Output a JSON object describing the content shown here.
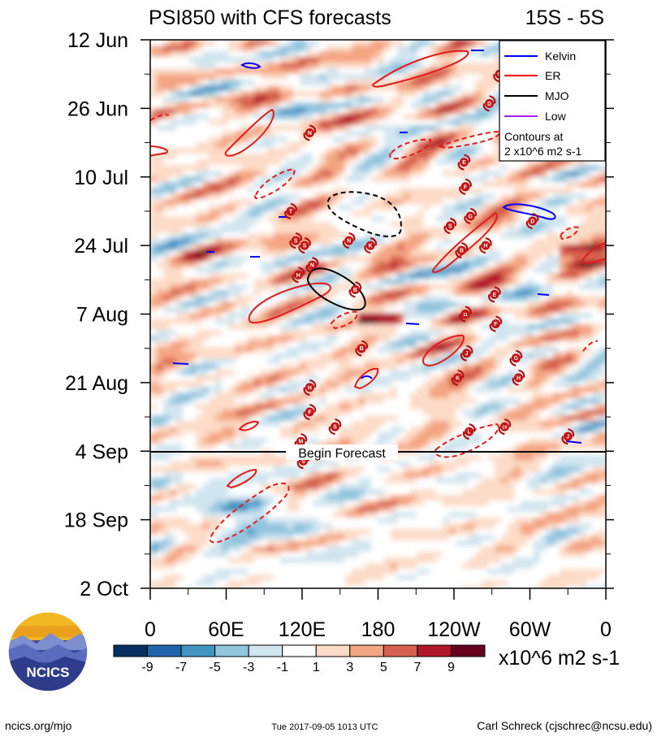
{
  "chart_data": {
    "type": "heatmap",
    "title": "PSI850 with CFS forecasts",
    "region": "15S - 5S",
    "quantity": "PSI850 anomaly",
    "units": "x10^6 m2 s-1",
    "x_ticks": [
      "0",
      "60E",
      "120E",
      "180",
      "120W",
      "60W",
      "0"
    ],
    "x_range_deg": [
      0,
      360
    ],
    "y_ticks": [
      "12 Jun",
      "26 Jun",
      "10 Jul",
      "24 Jul",
      "7 Aug",
      "21 Aug",
      "4 Sep",
      "18 Sep",
      "2 Oct"
    ],
    "date_range": [
      "12 Jun",
      "2 Oct"
    ],
    "forecast_start": "4 Sep",
    "forecast_label": "Begin Forecast",
    "colorbar": {
      "labels": [
        "-9",
        "-7",
        "-5",
        "-3",
        "-1",
        "1",
        "3",
        "5",
        "7",
        "9"
      ],
      "colors": [
        "#053061",
        "#2166ac",
        "#4393c3",
        "#92c5de",
        "#d1e5f0",
        "#ffffff",
        "#fddbc7",
        "#f4a582",
        "#d6604d",
        "#b2182b",
        "#67001f"
      ]
    },
    "legend": {
      "entries": [
        {
          "name": "Kelvin",
          "color": "#0000ff"
        },
        {
          "name": "ER",
          "color": "#ff0000"
        },
        {
          "name": "MJO",
          "color": "#000000"
        },
        {
          "name": "Low",
          "color": "#a020f0"
        }
      ],
      "note_line1": "Contours at",
      "note_line2": "2 x10^6 m2 s-1",
      "placement": "top-right"
    },
    "storms": [
      {
        "label": "G",
        "lon": 276,
        "day": 7
      },
      {
        "label": "D",
        "lon": 268,
        "day": 13
      },
      {
        "label": "N",
        "lon": 126,
        "day": 19
      },
      {
        "label": "E",
        "lon": 248,
        "day": 25
      },
      {
        "label": "F",
        "lon": 249,
        "day": 30
      },
      {
        "label": "T",
        "lon": 111,
        "day": 35
      },
      {
        "label": "S",
        "lon": 237,
        "day": 38
      },
      {
        "label": "G",
        "lon": 253,
        "day": 36
      },
      {
        "label": "N",
        "lon": 157,
        "day": 41
      },
      {
        "label": "K",
        "lon": 174,
        "day": 42
      },
      {
        "label": "D",
        "lon": 302,
        "day": 37
      },
      {
        "label": "S",
        "lon": 115,
        "day": 41
      },
      {
        "label": "S",
        "lon": 122,
        "day": 42
      },
      {
        "label": "B",
        "lon": 246,
        "day": 43
      },
      {
        "label": "H",
        "lon": 265,
        "day": 42
      },
      {
        "label": "N",
        "lon": 128,
        "day": 46
      },
      {
        "label": "H",
        "lon": 117,
        "day": 48
      },
      {
        "label": "E",
        "lon": 272,
        "day": 52
      },
      {
        "label": "B",
        "lon": 162,
        "day": 51
      },
      {
        "label": "11",
        "lon": 249,
        "day": 56
      },
      {
        "label": "F",
        "lon": 273,
        "day": 58
      },
      {
        "label": "B",
        "lon": 167,
        "day": 63
      },
      {
        "label": "J",
        "lon": 250,
        "day": 64
      },
      {
        "label": "G",
        "lon": 289,
        "day": 65
      },
      {
        "label": "K",
        "lon": 243,
        "day": 69
      },
      {
        "label": "H",
        "lon": 291,
        "day": 69
      },
      {
        "label": "H",
        "lon": 126,
        "day": 71
      },
      {
        "label": "F",
        "lon": 126,
        "day": 76
      },
      {
        "label": "S",
        "lon": 146,
        "day": 79
      },
      {
        "label": "10",
        "lon": 280,
        "day": 79
      },
      {
        "label": "L",
        "lon": 252,
        "day": 80
      },
      {
        "label": "M",
        "lon": 119,
        "day": 82
      },
      {
        "label": "J",
        "lon": 330,
        "day": 81
      },
      {
        "label": "S",
        "lon": 121,
        "day": 86
      }
    ]
  },
  "branding": {
    "logo_text": "NCICS",
    "url": "ncics.org/mjo",
    "timestamp": "Tue 2017-09-05 1013 UTC",
    "author": "Carl Schreck (cjschrec@ncsu.edu)"
  }
}
